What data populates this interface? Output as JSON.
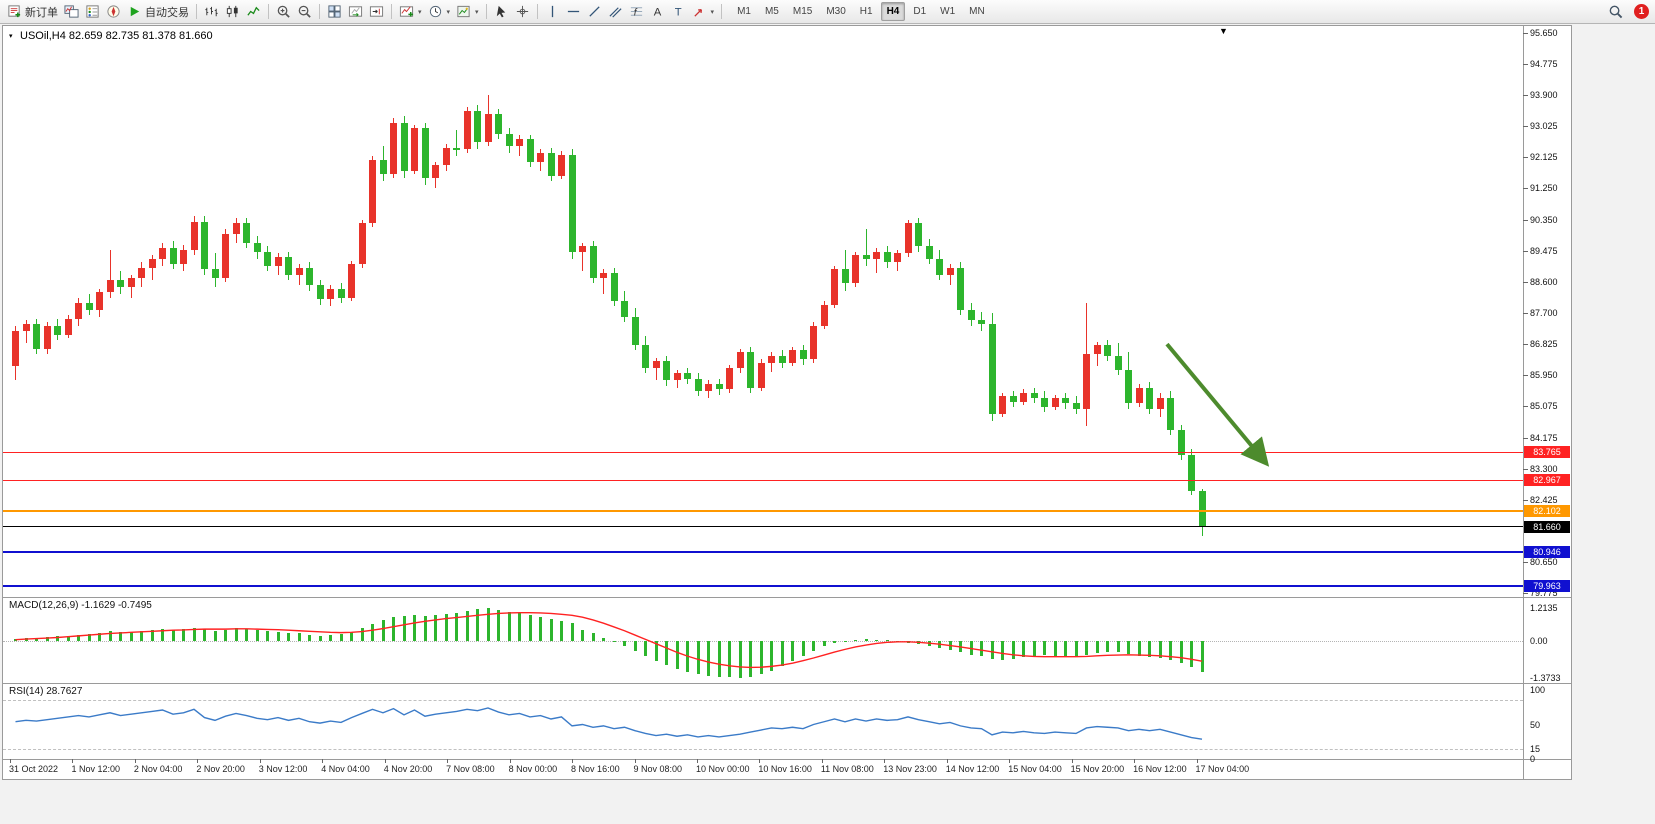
{
  "toolbar": {
    "items": [
      {
        "type": "button",
        "name": "new-order-button",
        "icon": "new-order-icon",
        "label": "新订单"
      },
      {
        "type": "button",
        "name": "charts-button",
        "icon": "charts-icon"
      },
      {
        "type": "button",
        "name": "market-watch-button",
        "icon": "market-watch-icon"
      },
      {
        "type": "button",
        "name": "navigator-button",
        "icon": "navigator-icon"
      },
      {
        "type": "button",
        "name": "auto-trading-button",
        "icon": "play-icon",
        "label": "自动交易"
      },
      {
        "type": "sep"
      },
      {
        "type": "button",
        "name": "bar-chart-button",
        "icon": "bar-chart-icon"
      },
      {
        "type": "button",
        "name": "candlestick-chart-button",
        "icon": "candlestick-icon"
      },
      {
        "type": "button",
        "name": "line-chart-button",
        "icon": "line-chart-icon"
      },
      {
        "type": "sep"
      },
      {
        "type": "button",
        "name": "zoom-in-button",
        "icon": "zoom-in-icon"
      },
      {
        "type": "button",
        "name": "zoom-out-button",
        "icon": "zoom-out-icon"
      },
      {
        "type": "sep"
      },
      {
        "type": "button",
        "name": "tile-windows-button",
        "icon": "tile-windows-icon"
      },
      {
        "type": "button",
        "name": "auto-scroll-button",
        "icon": "auto-scroll-icon"
      },
      {
        "type": "button",
        "name": "chart-shift-button",
        "icon": "chart-shift-icon"
      },
      {
        "type": "sep"
      },
      {
        "type": "button",
        "name": "indicators-button",
        "icon": "indicators-icon",
        "caret": true
      },
      {
        "type": "button",
        "name": "periods-button",
        "icon": "clock-icon",
        "caret": true
      },
      {
        "type": "button",
        "name": "templates-button",
        "icon": "template-icon",
        "caret": true
      },
      {
        "type": "sep"
      },
      {
        "type": "button",
        "name": "cursor-button",
        "icon": "cursor-icon"
      },
      {
        "type": "button",
        "name": "crosshair-button",
        "icon": "crosshair-icon"
      },
      {
        "type": "sep"
      },
      {
        "type": "button",
        "name": "vertical-line-button",
        "icon": "vertical-line-icon"
      },
      {
        "type": "button",
        "name": "horizontal-line-button",
        "icon": "horizontal-line-icon"
      },
      {
        "type": "button",
        "name": "trendline-button",
        "icon": "trendline-icon"
      },
      {
        "type": "button",
        "name": "equidistant-channel-button",
        "icon": "channel-icon"
      },
      {
        "type": "button",
        "name": "fibonacci-button",
        "icon": "fibonacci-icon"
      },
      {
        "type": "button",
        "name": "text-button",
        "icon": "text-icon"
      },
      {
        "type": "button",
        "name": "text-label-button",
        "icon": "label-icon"
      },
      {
        "type": "button",
        "name": "arrows-button",
        "icon": "arrow-icon",
        "caret": true
      },
      {
        "type": "sep"
      }
    ],
    "timeframes": [
      {
        "label": "M1"
      },
      {
        "label": "M5"
      },
      {
        "label": "M15"
      },
      {
        "label": "M30"
      },
      {
        "label": "H1"
      },
      {
        "label": "H4",
        "active": true
      },
      {
        "label": "D1"
      },
      {
        "label": "W1"
      },
      {
        "label": "MN"
      }
    ],
    "notification_count": "1"
  },
  "chart": {
    "symbol_line": "USOil,H4  82.659 82.735 81.378 81.660"
  },
  "colors": {
    "bull_up": "#e8332a",
    "bear_down": "#2db52d",
    "red": "#ff2222",
    "orange": "#ff9800",
    "blue": "#1010d0",
    "black": "#000000",
    "macd_signal": "#ff2222",
    "macd_histogram": "#2db52d",
    "rsi_line": "#3b7bc8",
    "arrow": "#4d8b2d"
  },
  "chart_data": {
    "type": "candlestick",
    "symbol": "USOil",
    "timeframe": "H4",
    "current_bar": {
      "open": 82.659,
      "high": 82.735,
      "low": 81.378,
      "close": 81.66
    },
    "ylim": [
      79.775,
      95.65
    ],
    "y_axis_ticks": [
      "95.650",
      "94.775",
      "93.900",
      "93.025",
      "92.125",
      "91.250",
      "90.350",
      "89.475",
      "88.600",
      "87.700",
      "86.825",
      "85.950",
      "85.075",
      "84.175",
      "83.300",
      "82.425",
      "80.650",
      "79.775"
    ],
    "x_axis_labels": [
      "31 Oct 2022",
      "1 Nov 12:00",
      "2 Nov 04:00",
      "2 Nov 20:00",
      "3 Nov 12:00",
      "4 Nov 04:00",
      "4 Nov 20:00",
      "7 Nov 08:00",
      "8 Nov 00:00",
      "8 Nov 16:00",
      "9 Nov 08:00",
      "10 Nov 00:00",
      "10 Nov 16:00",
      "11 Nov 08:00",
      "13 Nov 23:00",
      "14 Nov 12:00",
      "15 Nov 04:00",
      "15 Nov 20:00",
      "16 Nov 12:00",
      "17 Nov 04:00"
    ],
    "levels": [
      {
        "price": "83.765",
        "color": "red",
        "width": 1
      },
      {
        "price": "82.967",
        "color": "red",
        "width": 1
      },
      {
        "price": "82.102",
        "color": "orange",
        "width": 2
      },
      {
        "price": "81.660",
        "color": "black",
        "width": 1
      },
      {
        "price": "80.946",
        "color": "blue",
        "width": 2
      },
      {
        "price": "79.963",
        "color": "blue",
        "width": 2
      }
    ],
    "annotations": [
      {
        "type": "arrow",
        "name": "down-trend-arrow",
        "from": {
          "bar": 110,
          "price": 86.83
        },
        "to": {
          "bar": 120,
          "price": 83.3
        }
      }
    ],
    "candles": [
      [
        86.2,
        87.35,
        85.8,
        87.2
      ],
      [
        87.2,
        87.5,
        86.85,
        87.4
      ],
      [
        87.4,
        87.55,
        86.55,
        86.7
      ],
      [
        86.7,
        87.45,
        86.55,
        87.35
      ],
      [
        87.35,
        87.55,
        86.95,
        87.1
      ],
      [
        87.1,
        87.65,
        87.0,
        87.55
      ],
      [
        87.55,
        88.15,
        87.35,
        88.0
      ],
      [
        88.0,
        88.25,
        87.65,
        87.8
      ],
      [
        87.8,
        88.4,
        87.6,
        88.3
      ],
      [
        88.3,
        89.5,
        88.15,
        88.65
      ],
      [
        88.65,
        88.9,
        88.25,
        88.45
      ],
      [
        88.45,
        88.8,
        88.15,
        88.7
      ],
      [
        88.7,
        89.15,
        88.45,
        89.0
      ],
      [
        89.0,
        89.35,
        88.65,
        89.25
      ],
      [
        89.25,
        89.7,
        89.05,
        89.55
      ],
      [
        89.55,
        89.75,
        88.95,
        89.1
      ],
      [
        89.1,
        89.65,
        88.9,
        89.5
      ],
      [
        89.5,
        90.45,
        89.35,
        90.3
      ],
      [
        90.3,
        90.45,
        88.8,
        88.95
      ],
      [
        88.95,
        89.4,
        88.45,
        88.7
      ],
      [
        88.7,
        90.1,
        88.6,
        89.95
      ],
      [
        89.95,
        90.4,
        89.7,
        90.25
      ],
      [
        90.25,
        90.4,
        89.55,
        89.7
      ],
      [
        89.7,
        89.9,
        89.25,
        89.45
      ],
      [
        89.45,
        89.6,
        88.9,
        89.05
      ],
      [
        89.05,
        89.4,
        88.8,
        89.3
      ],
      [
        89.3,
        89.45,
        88.65,
        88.8
      ],
      [
        88.8,
        89.1,
        88.5,
        89.0
      ],
      [
        89.0,
        89.15,
        88.35,
        88.5
      ],
      [
        88.5,
        88.65,
        87.95,
        88.1
      ],
      [
        88.1,
        88.5,
        87.9,
        88.4
      ],
      [
        88.4,
        88.55,
        88.0,
        88.15
      ],
      [
        88.15,
        89.2,
        88.05,
        89.1
      ],
      [
        89.1,
        90.35,
        89.0,
        90.25
      ],
      [
        90.25,
        92.15,
        90.15,
        92.05
      ],
      [
        92.05,
        92.45,
        91.45,
        91.65
      ],
      [
        91.65,
        93.25,
        91.55,
        93.1
      ],
      [
        93.1,
        93.3,
        91.55,
        91.75
      ],
      [
        91.75,
        93.05,
        91.65,
        92.95
      ],
      [
        92.95,
        93.1,
        91.35,
        91.55
      ],
      [
        91.55,
        92.0,
        91.25,
        91.9
      ],
      [
        91.9,
        92.5,
        91.75,
        92.4
      ],
      [
        92.4,
        92.9,
        92.15,
        92.35
      ],
      [
        92.35,
        93.55,
        92.25,
        93.45
      ],
      [
        93.45,
        93.6,
        92.35,
        92.55
      ],
      [
        92.55,
        93.9,
        92.45,
        93.35
      ],
      [
        93.35,
        93.5,
        92.65,
        92.8
      ],
      [
        92.8,
        92.95,
        92.25,
        92.45
      ],
      [
        92.45,
        92.75,
        92.15,
        92.65
      ],
      [
        92.65,
        92.75,
        91.85,
        92.0
      ],
      [
        92.0,
        92.35,
        91.75,
        92.25
      ],
      [
        92.25,
        92.4,
        91.45,
        91.6
      ],
      [
        91.6,
        92.3,
        91.5,
        92.2
      ],
      [
        92.2,
        92.35,
        89.25,
        89.45
      ],
      [
        89.45,
        89.7,
        88.9,
        89.6
      ],
      [
        89.6,
        89.75,
        88.55,
        88.7
      ],
      [
        88.7,
        88.95,
        88.25,
        88.85
      ],
      [
        88.85,
        89.0,
        87.9,
        88.05
      ],
      [
        88.05,
        88.35,
        87.45,
        87.6
      ],
      [
        87.6,
        87.85,
        86.65,
        86.8
      ],
      [
        86.8,
        87.05,
        86.0,
        86.15
      ],
      [
        86.15,
        86.45,
        85.8,
        86.35
      ],
      [
        86.35,
        86.5,
        85.65,
        85.8
      ],
      [
        85.8,
        86.1,
        85.6,
        86.0
      ],
      [
        86.0,
        86.15,
        85.7,
        85.85
      ],
      [
        85.85,
        86.0,
        85.35,
        85.5
      ],
      [
        85.5,
        85.8,
        85.3,
        85.7
      ],
      [
        85.7,
        85.85,
        85.4,
        85.55
      ],
      [
        85.55,
        86.25,
        85.45,
        86.15
      ],
      [
        86.15,
        86.7,
        86.0,
        86.6
      ],
      [
        86.6,
        86.75,
        85.45,
        85.6
      ],
      [
        85.6,
        86.4,
        85.5,
        86.3
      ],
      [
        86.3,
        86.6,
        86.05,
        86.5
      ],
      [
        86.5,
        86.65,
        86.15,
        86.3
      ],
      [
        86.3,
        86.75,
        86.2,
        86.65
      ],
      [
        86.65,
        86.8,
        86.25,
        86.4
      ],
      [
        86.4,
        87.45,
        86.3,
        87.35
      ],
      [
        87.35,
        88.05,
        87.25,
        87.95
      ],
      [
        87.95,
        89.05,
        87.85,
        88.95
      ],
      [
        88.95,
        89.5,
        88.35,
        88.55
      ],
      [
        88.55,
        89.45,
        88.45,
        89.35
      ],
      [
        89.35,
        90.1,
        89.05,
        89.25
      ],
      [
        89.25,
        89.55,
        88.85,
        89.45
      ],
      [
        89.45,
        89.6,
        89.0,
        89.15
      ],
      [
        89.15,
        89.5,
        88.9,
        89.4
      ],
      [
        89.4,
        90.35,
        89.3,
        90.25
      ],
      [
        90.25,
        90.4,
        89.45,
        89.6
      ],
      [
        89.6,
        89.8,
        89.1,
        89.25
      ],
      [
        89.25,
        89.5,
        88.65,
        88.8
      ],
      [
        88.8,
        89.1,
        88.5,
        89.0
      ],
      [
        89.0,
        89.15,
        87.65,
        87.8
      ],
      [
        87.8,
        88.0,
        87.35,
        87.5
      ],
      [
        87.5,
        87.75,
        87.2,
        87.4
      ],
      [
        87.4,
        87.7,
        84.65,
        84.85
      ],
      [
        84.85,
        85.45,
        84.75,
        85.35
      ],
      [
        85.35,
        85.5,
        85.05,
        85.2
      ],
      [
        85.2,
        85.55,
        85.1,
        85.45
      ],
      [
        85.45,
        85.6,
        85.15,
        85.3
      ],
      [
        85.3,
        85.5,
        84.9,
        85.05
      ],
      [
        85.05,
        85.4,
        84.95,
        85.3
      ],
      [
        85.3,
        85.45,
        85.0,
        85.15
      ],
      [
        85.15,
        85.35,
        84.85,
        85.0
      ],
      [
        85.0,
        88.0,
        84.5,
        86.55
      ],
      [
        86.55,
        86.9,
        86.2,
        86.8
      ],
      [
        86.8,
        86.95,
        86.35,
        86.5
      ],
      [
        86.5,
        86.85,
        85.95,
        86.1
      ],
      [
        86.1,
        86.6,
        85.0,
        85.15
      ],
      [
        85.15,
        85.7,
        85.05,
        85.6
      ],
      [
        85.6,
        85.75,
        84.85,
        85.0
      ],
      [
        85.0,
        85.45,
        84.75,
        85.3
      ],
      [
        85.3,
        85.5,
        84.25,
        84.4
      ],
      [
        84.4,
        84.55,
        83.55,
        83.7
      ],
      [
        83.7,
        83.85,
        82.55,
        82.66
      ],
      [
        82.659,
        82.735,
        81.378,
        81.66
      ]
    ],
    "macd": {
      "label": "MACD(12,26,9)",
      "values_text": "-1.1629 -0.7495",
      "axis_labels": [
        "1.2135",
        "0.00",
        "-1.3733"
      ],
      "histogram": [
        0.08,
        0.1,
        0.12,
        0.14,
        0.17,
        0.2,
        0.24,
        0.27,
        0.31,
        0.36,
        0.33,
        0.35,
        0.38,
        0.41,
        0.44,
        0.42,
        0.45,
        0.5,
        0.44,
        0.36,
        0.42,
        0.47,
        0.45,
        0.4,
        0.36,
        0.33,
        0.3,
        0.28,
        0.24,
        0.2,
        0.22,
        0.26,
        0.34,
        0.48,
        0.64,
        0.76,
        0.88,
        0.92,
        0.98,
        0.94,
        0.96,
        1.0,
        1.05,
        1.1,
        1.18,
        1.2135,
        1.15,
        1.08,
        1.02,
        0.95,
        0.88,
        0.8,
        0.74,
        0.66,
        0.42,
        0.28,
        0.12,
        -0.02,
        -0.18,
        -0.36,
        -0.55,
        -0.74,
        -0.9,
        -1.04,
        -1.15,
        -1.22,
        -1.28,
        -1.32,
        -1.35,
        -1.3733,
        -1.33,
        -1.24,
        -1.1,
        -0.94,
        -0.75,
        -0.55,
        -0.36,
        -0.2,
        -0.08,
        0.0,
        0.04,
        0.06,
        0.05,
        0.02,
        -0.02,
        -0.06,
        -0.12,
        -0.18,
        -0.26,
        -0.34,
        -0.42,
        -0.5,
        -0.56,
        -0.66,
        -0.72,
        -0.65,
        -0.58,
        -0.54,
        -0.52,
        -0.54,
        -0.56,
        -0.58,
        -0.52,
        -0.44,
        -0.4,
        -0.42,
        -0.48,
        -0.54,
        -0.58,
        -0.62,
        -0.7,
        -0.82,
        -0.98,
        -1.1629
      ],
      "signal": [
        0.05,
        0.07,
        0.09,
        0.11,
        0.13,
        0.16,
        0.19,
        0.22,
        0.25,
        0.28,
        0.3,
        0.32,
        0.34,
        0.36,
        0.38,
        0.4,
        0.41,
        0.43,
        0.44,
        0.44,
        0.44,
        0.45,
        0.45,
        0.44,
        0.43,
        0.42,
        0.4,
        0.38,
        0.36,
        0.34,
        0.32,
        0.31,
        0.32,
        0.35,
        0.4,
        0.46,
        0.53,
        0.6,
        0.67,
        0.73,
        0.78,
        0.83,
        0.87,
        0.91,
        0.95,
        0.99,
        1.02,
        1.04,
        1.05,
        1.05,
        1.04,
        1.02,
        0.99,
        0.95,
        0.88,
        0.78,
        0.66,
        0.52,
        0.38,
        0.22,
        0.06,
        -0.1,
        -0.26,
        -0.42,
        -0.56,
        -0.68,
        -0.78,
        -0.86,
        -0.92,
        -0.96,
        -0.98,
        -0.97,
        -0.94,
        -0.89,
        -0.82,
        -0.73,
        -0.63,
        -0.52,
        -0.41,
        -0.31,
        -0.22,
        -0.15,
        -0.09,
        -0.05,
        -0.03,
        -0.03,
        -0.05,
        -0.08,
        -0.12,
        -0.17,
        -0.22,
        -0.28,
        -0.34,
        -0.4,
        -0.46,
        -0.51,
        -0.55,
        -0.57,
        -0.58,
        -0.58,
        -0.58,
        -0.58,
        -0.57,
        -0.55,
        -0.53,
        -0.52,
        -0.51,
        -0.52,
        -0.53,
        -0.55,
        -0.58,
        -0.62,
        -0.68,
        -0.7495
      ]
    },
    "rsi": {
      "label": "RSI(14)",
      "value_text": "28.7627",
      "axis_labels": [
        "100",
        "50",
        "15",
        "0"
      ],
      "levels": [
        85,
        15
      ],
      "series": [
        54,
        56,
        55,
        57,
        59,
        61,
        63,
        61,
        64,
        67,
        63,
        65,
        67,
        69,
        71,
        65,
        67,
        72,
        60,
        56,
        62,
        66,
        63,
        59,
        57,
        60,
        56,
        59,
        54,
        52,
        55,
        53,
        60,
        66,
        72,
        67,
        73,
        64,
        71,
        62,
        65,
        67,
        69,
        72,
        70,
        74,
        68,
        64,
        66,
        61,
        63,
        58,
        61,
        48,
        50,
        46,
        48,
        44,
        46,
        41,
        37,
        34,
        36,
        33,
        35,
        32,
        34,
        32,
        34,
        36,
        39,
        42,
        45,
        44,
        46,
        44,
        50,
        54,
        58,
        54,
        58,
        55,
        58,
        56,
        57,
        61,
        57,
        54,
        51,
        53,
        48,
        45,
        44,
        35,
        39,
        38,
        40,
        38,
        37,
        39,
        38,
        37,
        45,
        47,
        46,
        45,
        41,
        43,
        41,
        43,
        39,
        35,
        31,
        28.7627
      ]
    }
  }
}
